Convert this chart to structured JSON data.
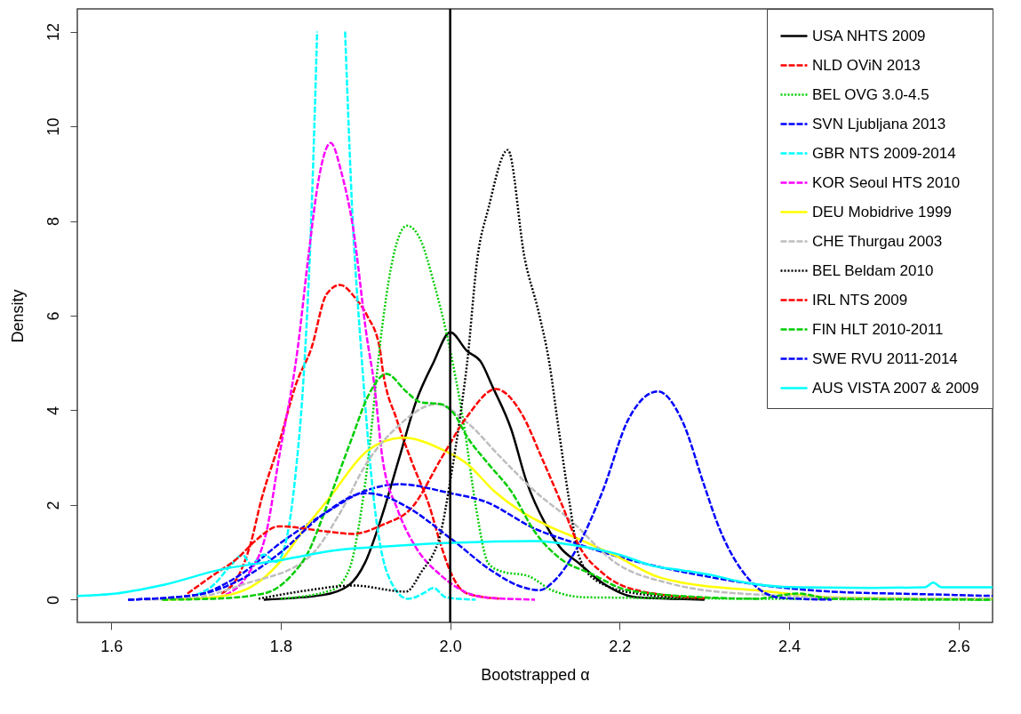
{
  "chart_data": {
    "type": "line",
    "xlabel": "Bootstrapped α",
    "ylabel": "Density",
    "xlim": [
      1.56,
      2.64
    ],
    "ylim": [
      -0.48,
      12.48
    ],
    "xticks": [
      1.6,
      1.8,
      {
        "value": 2,
        "label": "2.0"
      },
      2.2,
      2.4,
      2.6
    ],
    "yticks": [
      0,
      2,
      4,
      6,
      8,
      10,
      12
    ],
    "legend": "top right",
    "ref_lines": [
      {
        "axis": "x",
        "value": 2,
        "color": "#000000"
      }
    ],
    "series": [
      {
        "name": "USA NHTS 2009",
        "color": "#000000",
        "line_style": "solid",
        "x": [
          1.78,
          1.85,
          1.88,
          1.9,
          1.92,
          1.94,
          1.96,
          1.98,
          2.0,
          2.02,
          2.036,
          2.05,
          2.072,
          2.09,
          2.113,
          2.13,
          2.152,
          2.18,
          2.22,
          2.26,
          2.3
        ],
        "values": [
          0,
          0.1,
          0.3,
          0.8,
          1.8,
          3.0,
          4.2,
          5.0,
          5.65,
          5.25,
          5.03,
          4.5,
          3.6,
          2.5,
          1.58,
          1.1,
          0.77,
          0.35,
          0.05,
          0.02,
          0
        ]
      },
      {
        "name": "NLD OViN 2013",
        "color": "#ff0000",
        "line_style": "dashed",
        "x": [
          1.73,
          1.75,
          1.764,
          1.777,
          1.798,
          1.819,
          1.836,
          1.854,
          1.87,
          1.889,
          1.902,
          1.917,
          1.92,
          1.937,
          1.955,
          1.975,
          1.99,
          2.0,
          2.02,
          2.06
        ],
        "values": [
          0.13,
          0.5,
          1.15,
          2.1,
          3.3,
          4.6,
          5.3,
          6.45,
          6.65,
          6.35,
          6.0,
          5.3,
          4.9,
          3.8,
          2.9,
          2.0,
          1.1,
          0.6,
          0.13,
          0.02
        ]
      },
      {
        "name": "BEL OVG 3.0-4.5",
        "color": "#00cd00",
        "line_style": "dotted",
        "x": [
          1.8,
          1.86,
          1.88,
          1.9,
          1.92,
          1.93,
          1.949,
          1.965,
          1.98,
          1.996,
          2.017,
          2.03,
          2.045,
          2.06,
          2.092,
          2.12,
          2.16,
          2.64
        ],
        "values": [
          0.02,
          0.2,
          0.6,
          2.5,
          5.8,
          7.0,
          7.9,
          7.6,
          6.74,
          5.6,
          3.6,
          2.0,
          0.77,
          0.6,
          0.5,
          0.2,
          0.05,
          0
        ]
      },
      {
        "name": "SVN Ljubljana 2013",
        "color": "#0000ff",
        "line_style": "dashed",
        "x": [
          1.62,
          1.7,
          1.75,
          1.8,
          1.85,
          1.9,
          1.94,
          2.0,
          2.04,
          2.1,
          2.15,
          2.2,
          2.26,
          2.3,
          2.35,
          2.45,
          2.55,
          2.64
        ],
        "values": [
          0,
          0.1,
          0.5,
          1.2,
          1.8,
          2.3,
          2.44,
          2.25,
          2.08,
          1.5,
          1.18,
          0.9,
          0.64,
          0.5,
          0.35,
          0.17,
          0.12,
          0.08
        ]
      },
      {
        "name": "GBR NTS 2009-2014",
        "color": "#00ffff",
        "line_style": "dashed",
        "x": [
          1.7,
          1.72,
          1.74,
          1.755,
          1.765,
          1.78,
          1.795,
          1.805,
          1.816,
          1.829,
          1.836,
          1.843,
          1.86,
          1.876,
          1.885,
          1.894,
          1.912,
          1.927,
          1.95,
          1.97,
          1.98,
          1.995,
          2.03
        ],
        "values": [
          0.1,
          0.3,
          0.7,
          0.95,
          0.75,
          0.95,
          0.8,
          1.14,
          2.4,
          5.3,
          8.0,
          12.0,
          null,
          12.0,
          8.0,
          5.5,
          1.8,
          0.5,
          0.02,
          0.15,
          0.25,
          0.05,
          0
        ]
      },
      {
        "name": "KOR Seoul HTS 2010",
        "color": "#ff00ff",
        "line_style": "dashed",
        "x": [
          1.735,
          1.76,
          1.784,
          1.798,
          1.82,
          1.833,
          1.845,
          1.859,
          1.872,
          1.885,
          1.902,
          1.91,
          1.92,
          1.938,
          1.958,
          1.99,
          2.04,
          2.1
        ],
        "values": [
          0.1,
          0.5,
          1.5,
          3.0,
          5.3,
          7.3,
          8.9,
          9.65,
          9.0,
          7.9,
          5.5,
          4.6,
          3.0,
          1.9,
          1.15,
          0.5,
          0.05,
          0
        ]
      },
      {
        "name": "DEU Mobidrive 1999",
        "color": "#ffff00",
        "line_style": "solid",
        "x": [
          1.66,
          1.72,
          1.764,
          1.798,
          1.826,
          1.857,
          1.902,
          1.944,
          1.993,
          2.02,
          2.052,
          2.084,
          2.113,
          2.152,
          2.196,
          2.244,
          2.28,
          2.36,
          2.45,
          2.6,
          2.64
        ],
        "values": [
          0,
          0.05,
          0.26,
          0.77,
          1.45,
          2.14,
          3.14,
          3.42,
          3.15,
          2.87,
          2.29,
          1.86,
          1.58,
          1.28,
          0.92,
          0.49,
          0.34,
          0.2,
          0.05,
          0.02,
          0.02
        ]
      },
      {
        "name": "CHE Thurgau 2003",
        "color": "#bebebe",
        "line_style": "dashed",
        "x": [
          1.64,
          1.7,
          1.757,
          1.833,
          1.868,
          1.902,
          1.937,
          1.984,
          2.02,
          2.06,
          2.1,
          2.14,
          2.196,
          2.26,
          2.3,
          2.4,
          2.5,
          2.64
        ],
        "values": [
          0,
          0.05,
          0.33,
          0.89,
          1.77,
          2.9,
          3.64,
          4.13,
          3.74,
          3.0,
          2.29,
          1.71,
          0.77,
          0.34,
          0.2,
          0.08,
          0.03,
          0.02
        ]
      },
      {
        "name": "BEL Beldam 2010",
        "color": "#000000",
        "line_style": "dotted",
        "x": [
          1.774,
          1.833,
          1.885,
          1.948,
          1.965,
          1.989,
          2.0,
          2.012,
          2.02,
          2.032,
          2.045,
          2.068,
          2.088,
          2.104,
          2.117,
          2.128,
          2.14,
          2.152,
          2.172,
          2.22,
          2.3
        ],
        "values": [
          0.02,
          0.2,
          0.3,
          0.17,
          0.56,
          1.43,
          2.5,
          3.9,
          5.0,
          7.2,
          8.26,
          9.5,
          7.2,
          6.1,
          5.0,
          3.6,
          2.14,
          0.92,
          0.41,
          0.13,
          0.02
        ]
      },
      {
        "name": "IRL NTS 2009",
        "color": "#ff0000",
        "line_style": "dashed",
        "x": [
          1.69,
          1.719,
          1.75,
          1.771,
          1.798,
          1.85,
          1.885,
          1.92,
          1.955,
          1.99,
          2.02,
          2.054,
          2.084,
          2.108,
          2.132,
          2.152,
          2.18,
          2.22,
          2.3
        ],
        "values": [
          0.13,
          0.5,
          0.89,
          1.26,
          1.55,
          1.45,
          1.39,
          1.58,
          1.95,
          3.0,
          3.87,
          4.45,
          3.94,
          3.0,
          2.0,
          1.14,
          0.56,
          0.2,
          0.03
        ]
      },
      {
        "name": "FIN HLT 2010-2011",
        "color": "#00cd00",
        "line_style": "dashed",
        "x": [
          1.66,
          1.72,
          1.78,
          1.812,
          1.833,
          1.85,
          1.868,
          1.885,
          1.902,
          1.925,
          1.948,
          1.965,
          1.989,
          2.004,
          2.02,
          2.045,
          2.072,
          2.1,
          2.132,
          2.165,
          2.21,
          2.3,
          2.36,
          2.41,
          2.45,
          2.64
        ],
        "values": [
          0,
          0.02,
          0.13,
          0.5,
          1.02,
          1.77,
          2.64,
          3.46,
          4.26,
          4.77,
          4.4,
          4.17,
          4.13,
          3.94,
          3.44,
          2.87,
          2.29,
          1.43,
          0.84,
          0.56,
          0.2,
          0.05,
          0.02,
          0.13,
          0.02,
          0
        ]
      },
      {
        "name": "SWE RVU 2011-2014",
        "color": "#0000ff",
        "line_style": "dashed",
        "x": [
          1.62,
          1.7,
          1.75,
          1.8,
          1.85,
          1.9,
          1.92,
          1.95,
          2.0,
          2.05,
          2.08,
          2.106,
          2.12,
          2.15,
          2.18,
          2.21,
          2.245,
          2.274,
          2.3,
          2.316,
          2.354,
          2.39,
          2.45
        ],
        "values": [
          0,
          0.1,
          0.4,
          1.0,
          1.8,
          2.25,
          2.2,
          1.95,
          1.3,
          0.6,
          0.3,
          0.2,
          0.35,
          1.1,
          2.3,
          3.8,
          4.4,
          3.77,
          2.4,
          1.58,
          0.4,
          0.04,
          0
        ]
      },
      {
        "name": "AUS VISTA 2007 & 2009",
        "color": "#00ffff",
        "line_style": "solid",
        "x": [
          1.56,
          1.6,
          1.663,
          1.73,
          1.798,
          1.868,
          1.937,
          2.0,
          2.1,
          2.15,
          2.2,
          2.24,
          2.274,
          2.316,
          2.34,
          2.41,
          2.5,
          2.56,
          2.57,
          2.58,
          2.64
        ],
        "values": [
          0.08,
          0.12,
          0.32,
          0.64,
          0.83,
          1.05,
          1.14,
          1.2,
          1.24,
          1.14,
          0.95,
          0.71,
          0.62,
          0.49,
          0.39,
          0.26,
          0.25,
          0.26,
          0.36,
          0.26,
          0.26
        ]
      }
    ]
  }
}
